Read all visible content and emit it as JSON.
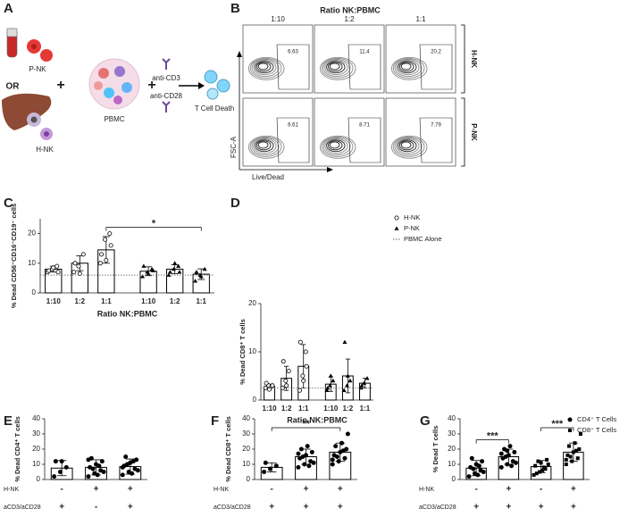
{
  "diagram": {
    "panel": "A",
    "texts": [
      "P-NK",
      "OR",
      "+",
      "PBMC",
      "+",
      "anti-CD3",
      "anti-CD28",
      "T Cell Death",
      "H-NK"
    ]
  },
  "flow": {
    "panel": "B",
    "title": "Ratio NK:PBMC",
    "columns": [
      "1:10",
      "1:2",
      "1:1"
    ],
    "rows": [
      {
        "name": "H-NK",
        "values": [
          6.63,
          11.4,
          20.2
        ]
      },
      {
        "name": "P-NK",
        "values": [
          6.61,
          8.71,
          7.79
        ]
      }
    ],
    "ylabel": "FSC-A",
    "xlabel": "Live/Dead"
  },
  "chart_data": [
    {
      "type": "bar",
      "panel": "C",
      "ylabel": "% Dead CD56⁻CD16⁻CD19⁻ cells",
      "xlabel": "Ratio NK:PBMC",
      "categories": [
        "1:10",
        "1:2",
        "1:1",
        "1:10",
        "1:2",
        "1:1"
      ],
      "values": [
        8,
        10,
        14.5,
        7.3,
        8,
        6.3
      ],
      "errors": [
        1,
        2.5,
        4.5,
        1.5,
        1.5,
        1.8
      ],
      "points": [
        [
          7,
          8,
          9,
          7.5,
          8.5,
          7
        ],
        [
          7,
          9,
          13,
          10,
          6.5
        ],
        [
          10,
          18,
          20,
          13,
          11,
          16
        ],
        [
          5.5,
          7,
          8,
          9,
          6.5,
          7.5
        ],
        [
          6,
          8,
          9,
          7,
          10,
          7
        ],
        [
          4,
          6,
          8,
          7,
          5.5
        ]
      ],
      "markers": [
        "open-circle",
        "open-circle",
        "open-circle",
        "triangle",
        "triangle",
        "triangle"
      ],
      "reference_line": 6,
      "ylim": [
        0,
        25
      ],
      "yticks": [
        0,
        10,
        20
      ],
      "significance": [
        {
          "from": 2,
          "to": 5,
          "label": "*"
        }
      ]
    },
    {
      "type": "bar",
      "panel": "D",
      "ylabel": "% Dead CD8⁺ T cells",
      "xlabel": "Ratio NK:PBMC",
      "categories": [
        "1:10",
        "1:2",
        "1:1",
        "1:10",
        "1:2",
        "1:1"
      ],
      "values": [
        2.8,
        4.5,
        7,
        3.3,
        5,
        3.5
      ],
      "errors": [
        0.5,
        2.5,
        4.5,
        1.5,
        3.5,
        1
      ],
      "points": [
        [
          2.5,
          3,
          2.8,
          3.5,
          2.2,
          3
        ],
        [
          2.5,
          4,
          6,
          8,
          3
        ],
        [
          2,
          5,
          10,
          12,
          4,
          7
        ],
        [
          2,
          3,
          4,
          2.5,
          5
        ],
        [
          2,
          3,
          4,
          12,
          5
        ],
        [
          2.5,
          3.5,
          4.5,
          3
        ]
      ],
      "markers": [
        "open-circle",
        "open-circle",
        "open-circle",
        "triangle",
        "triangle",
        "triangle"
      ],
      "reference_line": 2.5,
      "ylim": [
        0,
        20
      ],
      "yticks": [
        0,
        10,
        20
      ],
      "legend": [
        {
          "label": "H-NK",
          "marker": "open-circle"
        },
        {
          "label": "P-NK",
          "marker": "triangle"
        },
        {
          "label": "PBMC Alone",
          "marker": "dotted-line"
        }
      ]
    },
    {
      "type": "bar",
      "panel": "E",
      "ylabel": "% Dead CD4⁺ T cells",
      "values": [
        7.5,
        8,
        8.5
      ],
      "errors": [
        5,
        5,
        5
      ],
      "points": [
        [
          2,
          5,
          8,
          12,
          12
        ],
        [
          2,
          4,
          6,
          8,
          10,
          12,
          14,
          3,
          5,
          7,
          9,
          13
        ],
        [
          3,
          5,
          7,
          9,
          11,
          13,
          15,
          4,
          6,
          10,
          12,
          8
        ]
      ],
      "markers": [
        "circle",
        "circle",
        "circle"
      ],
      "ylim": [
        0,
        40
      ],
      "yticks": [
        0,
        10,
        20,
        30,
        40
      ],
      "conditions": [
        {
          "name": "H-NK",
          "values": [
            "-",
            "+",
            "+"
          ]
        },
        {
          "name": "aCD3/aCD28",
          "values": [
            "+",
            "-",
            "+"
          ]
        }
      ]
    },
    {
      "type": "bar",
      "panel": "F",
      "ylabel": "% Dead CD8⁺ T cells",
      "values": [
        8,
        15,
        18
      ],
      "errors": [
        3,
        5,
        6
      ],
      "points": [
        [
          5,
          7,
          9,
          11
        ],
        [
          8,
          10,
          12,
          14,
          16,
          18,
          20,
          22,
          11,
          15,
          9,
          17
        ],
        [
          10,
          12,
          14,
          16,
          18,
          20,
          22,
          24,
          30,
          15,
          19,
          13
        ]
      ],
      "markers": [
        "circle",
        "circle",
        "circle"
      ],
      "ylim": [
        0,
        40
      ],
      "yticks": [
        0,
        10,
        20,
        30,
        40
      ],
      "significance": [
        {
          "from": 0,
          "to": 2,
          "label": "**"
        }
      ],
      "conditions": [
        {
          "name": "H-NK",
          "values": [
            "-",
            "+",
            "+"
          ]
        },
        {
          "name": "aCD3/aCD28",
          "values": [
            "+",
            "+",
            "+"
          ]
        }
      ]
    },
    {
      "type": "bar",
      "panel": "G",
      "ylabel": "% Dead T cells",
      "values": [
        7.5,
        15,
        8.5,
        18
      ],
      "errors": [
        5,
        5,
        4,
        6
      ],
      "points": [
        [
          2,
          4,
          6,
          8,
          10,
          12,
          14,
          3,
          5,
          7,
          9
        ],
        [
          8,
          10,
          12,
          14,
          16,
          18,
          20,
          22,
          11,
          15,
          9,
          17,
          19
        ],
        [
          3,
          5,
          7,
          9,
          11,
          13,
          4,
          6,
          10,
          12,
          8
        ],
        [
          10,
          12,
          14,
          16,
          18,
          20,
          22,
          24,
          30,
          15,
          19,
          13
        ]
      ],
      "markers": [
        "circle",
        "circle",
        "square",
        "square"
      ],
      "ylim": [
        0,
        40
      ],
      "yticks": [
        0,
        10,
        20,
        30,
        40
      ],
      "significance": [
        {
          "from": 0,
          "to": 1,
          "label": "***"
        },
        {
          "from": 2,
          "to": 3,
          "label": "***"
        }
      ],
      "legend": [
        {
          "label": "CD4⁺ T Cells",
          "marker": "circle"
        },
        {
          "label": "CD8⁺ T Cells",
          "marker": "square"
        }
      ],
      "conditions": [
        {
          "name": "H-NK",
          "values": [
            "-",
            "+",
            "-",
            "+"
          ]
        },
        {
          "name": "aCD3/aCD28",
          "values": [
            "+",
            "+",
            "+",
            "+"
          ]
        }
      ]
    }
  ]
}
